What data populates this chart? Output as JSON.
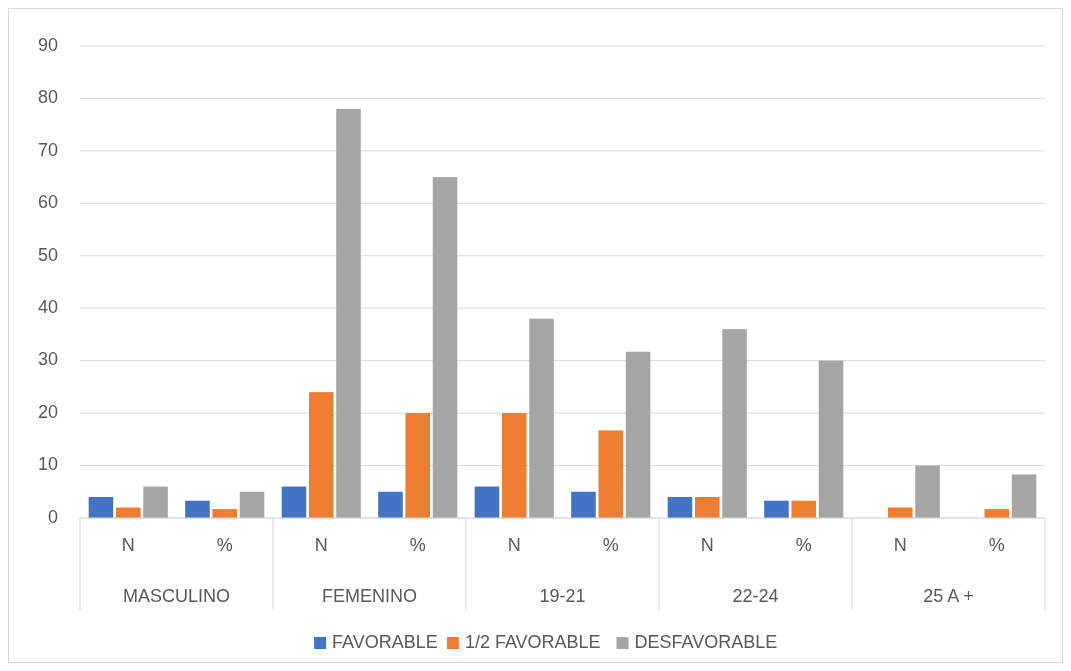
{
  "chart_data": {
    "type": "bar",
    "categories": [
      "N",
      "%",
      "N",
      "%",
      "N",
      "%",
      "N",
      "%",
      "N",
      "%"
    ],
    "series": [
      {
        "name": "FAVORABLE",
        "color": "#4472c4",
        "values": [
          4,
          3.3,
          6,
          5,
          6,
          5,
          4,
          3.3,
          0,
          0
        ]
      },
      {
        "name": "1/2 FAVORABLE",
        "color": "#ed7d31",
        "values": [
          2,
          1.7,
          24,
          20,
          20,
          16.7,
          4,
          3.3,
          2,
          1.7
        ]
      },
      {
        "name": "DESFAVORABLE",
        "color": "#a5a5a5",
        "values": [
          6,
          5,
          78,
          65,
          38,
          31.7,
          36,
          30,
          10,
          8.3
        ]
      }
    ],
    "annotations": [
      "MASCULINO",
      "FEMENINO",
      "19-21",
      "22-24",
      "25 A +"
    ],
    "ylim": [
      0,
      90
    ],
    "yticks": [
      0,
      10,
      20,
      30,
      40,
      50,
      60,
      70,
      80,
      90
    ],
    "grid": "y",
    "legend": "bottom"
  }
}
